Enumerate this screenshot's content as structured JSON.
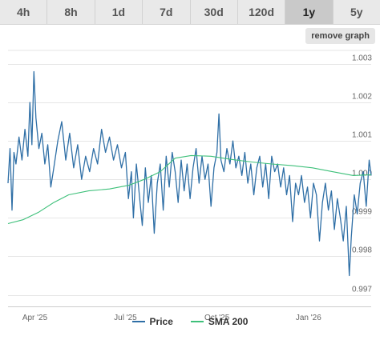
{
  "tabs": [
    {
      "label": "4h",
      "active": false
    },
    {
      "label": "8h",
      "active": false
    },
    {
      "label": "1d",
      "active": false
    },
    {
      "label": "7d",
      "active": false
    },
    {
      "label": "30d",
      "active": false
    },
    {
      "label": "120d",
      "active": false
    },
    {
      "label": "1y",
      "active": true
    },
    {
      "label": "5y",
      "active": false
    }
  ],
  "remove_graph_label": "remove graph",
  "colors": {
    "price": "#2f6fa6",
    "sma": "#3ec07a",
    "grid": "#e6e6e6",
    "axis_text": "#666666"
  },
  "chart_data": {
    "type": "line",
    "x_start": "2025-03-05",
    "x_end": "2026-03-05",
    "ylim": [
      0.9967,
      1.00335
    ],
    "yticks": [
      {
        "label": "0.997",
        "value": 0.997
      },
      {
        "label": "0.998",
        "value": 0.998
      },
      {
        "label": "0.999",
        "value": 0.999
      },
      {
        "label": "1.000",
        "value": 1.0
      },
      {
        "label": "1.001",
        "value": 1.001
      },
      {
        "label": "1.002",
        "value": 1.002
      },
      {
        "label": "1.003",
        "value": 1.003
      }
    ],
    "xticks": [
      {
        "label": "Apr '25",
        "date": "2025-04-01"
      },
      {
        "label": "Jul '25",
        "date": "2025-07-01"
      },
      {
        "label": "Oct '25",
        "date": "2025-10-01"
      },
      {
        "label": "Jan '26",
        "date": "2026-01-01"
      }
    ],
    "grid": true,
    "legend": "bottom",
    "series": [
      {
        "name": "Price",
        "points": [
          [
            "2025-03-05",
            0.9999
          ],
          [
            "2025-03-07",
            1.0008
          ],
          [
            "2025-03-09",
            0.9992
          ],
          [
            "2025-03-11",
            1.0007
          ],
          [
            "2025-03-13",
            1.0004
          ],
          [
            "2025-03-16",
            1.0011
          ],
          [
            "2025-03-19",
            1.0005
          ],
          [
            "2025-03-22",
            1.0013
          ],
          [
            "2025-03-25",
            1.0006
          ],
          [
            "2025-03-27",
            1.002
          ],
          [
            "2025-03-29",
            1.0009
          ],
          [
            "2025-03-31",
            1.0028
          ],
          [
            "2025-04-02",
            1.0016
          ],
          [
            "2025-04-05",
            1.0008
          ],
          [
            "2025-04-08",
            1.0012
          ],
          [
            "2025-04-11",
            1.0004
          ],
          [
            "2025-04-14",
            1.0009
          ],
          [
            "2025-04-17",
            0.9998
          ],
          [
            "2025-04-20",
            1.0003
          ],
          [
            "2025-04-24",
            1.001
          ],
          [
            "2025-04-28",
            1.0015
          ],
          [
            "2025-05-02",
            1.0005
          ],
          [
            "2025-05-06",
            1.0012
          ],
          [
            "2025-05-10",
            1.0003
          ],
          [
            "2025-05-14",
            1.0009
          ],
          [
            "2025-05-18",
            1.0
          ],
          [
            "2025-05-22",
            1.0006
          ],
          [
            "2025-05-26",
            1.0002
          ],
          [
            "2025-05-30",
            1.0008
          ],
          [
            "2025-06-03",
            1.0004
          ],
          [
            "2025-06-07",
            1.0013
          ],
          [
            "2025-06-11",
            1.0007
          ],
          [
            "2025-06-15",
            1.0011
          ],
          [
            "2025-06-19",
            1.0005
          ],
          [
            "2025-06-23",
            1.0009
          ],
          [
            "2025-06-27",
            1.0003
          ],
          [
            "2025-07-01",
            1.0007
          ],
          [
            "2025-07-04",
            0.9995
          ],
          [
            "2025-07-07",
            1.0002
          ],
          [
            "2025-07-09",
            0.999
          ],
          [
            "2025-07-12",
            1.0004
          ],
          [
            "2025-07-15",
            0.9996
          ],
          [
            "2025-07-18",
            0.9988
          ],
          [
            "2025-07-21",
            1.0003
          ],
          [
            "2025-07-24",
            0.9994
          ],
          [
            "2025-07-27",
            1.0001
          ],
          [
            "2025-07-30",
            0.9986
          ],
          [
            "2025-08-02",
            0.9999
          ],
          [
            "2025-08-05",
            1.0004
          ],
          [
            "2025-08-08",
            0.9992
          ],
          [
            "2025-08-11",
            1.0006
          ],
          [
            "2025-08-14",
            0.9998
          ],
          [
            "2025-08-17",
            1.0007
          ],
          [
            "2025-08-20",
            1.0002
          ],
          [
            "2025-08-23",
            0.9994
          ],
          [
            "2025-08-26",
            1.0005
          ],
          [
            "2025-08-29",
            0.9997
          ],
          [
            "2025-09-01",
            1.0004
          ],
          [
            "2025-09-04",
            0.9995
          ],
          [
            "2025-09-07",
            1.0003
          ],
          [
            "2025-09-10",
            1.0008
          ],
          [
            "2025-09-13",
            0.9999
          ],
          [
            "2025-09-16",
            1.0006
          ],
          [
            "2025-09-19",
            1.0
          ],
          [
            "2025-09-22",
            1.0004
          ],
          [
            "2025-09-25",
            0.9993
          ],
          [
            "2025-09-28",
            1.0003
          ],
          [
            "2025-10-01",
            1.0007
          ],
          [
            "2025-10-03",
            1.0017
          ],
          [
            "2025-10-05",
            1.0005
          ],
          [
            "2025-10-08",
            1.0002
          ],
          [
            "2025-10-11",
            1.0008
          ],
          [
            "2025-10-14",
            1.0004
          ],
          [
            "2025-10-17",
            1.001
          ],
          [
            "2025-10-20",
            1.0003
          ],
          [
            "2025-10-23",
            1.0006
          ],
          [
            "2025-10-26",
            1.0001
          ],
          [
            "2025-10-29",
            1.0007
          ],
          [
            "2025-11-01",
            0.9999
          ],
          [
            "2025-11-04",
            1.0004
          ],
          [
            "2025-11-07",
            0.9996
          ],
          [
            "2025-11-10",
            1.0003
          ],
          [
            "2025-11-13",
            1.0006
          ],
          [
            "2025-11-16",
            0.9998
          ],
          [
            "2025-11-19",
            1.0004
          ],
          [
            "2025-11-22",
            0.9995
          ],
          [
            "2025-11-25",
            1.0006
          ],
          [
            "2025-11-28",
            1.0002
          ],
          [
            "2025-12-01",
            1.0004
          ],
          [
            "2025-12-04",
            0.9998
          ],
          [
            "2025-12-07",
            1.0003
          ],
          [
            "2025-12-10",
            0.9996
          ],
          [
            "2025-12-13",
            1.0001
          ],
          [
            "2025-12-16",
            0.9989
          ],
          [
            "2025-12-19",
            0.9999
          ],
          [
            "2025-12-22",
            0.9996
          ],
          [
            "2025-12-25",
            1.0001
          ],
          [
            "2025-12-28",
            0.9994
          ],
          [
            "2025-12-31",
            0.9998
          ],
          [
            "2026-01-03",
            0.999
          ],
          [
            "2026-01-06",
            0.9999
          ],
          [
            "2026-01-09",
            0.9996
          ],
          [
            "2026-01-12",
            0.9984
          ],
          [
            "2026-01-15",
            0.9994
          ],
          [
            "2026-01-18",
            0.9999
          ],
          [
            "2026-01-21",
            0.9992
          ],
          [
            "2026-01-24",
            0.9997
          ],
          [
            "2026-01-27",
            0.9987
          ],
          [
            "2026-01-30",
            0.9995
          ],
          [
            "2026-02-02",
            0.999
          ],
          [
            "2026-02-05",
            0.9984
          ],
          [
            "2026-02-08",
            0.9993
          ],
          [
            "2026-02-11",
            0.9975
          ],
          [
            "2026-02-13",
            0.9985
          ],
          [
            "2026-02-16",
            0.9996
          ],
          [
            "2026-02-19",
            0.9991
          ],
          [
            "2026-02-22",
            0.9999
          ],
          [
            "2026-02-25",
            1.0002
          ],
          [
            "2026-02-28",
            0.9993
          ],
          [
            "2026-03-03",
            1.0005
          ],
          [
            "2026-03-05",
            1.0001
          ]
        ]
      },
      {
        "name": "SMA 200",
        "points": [
          [
            "2025-03-05",
            0.99885
          ],
          [
            "2025-03-20",
            0.99895
          ],
          [
            "2025-04-05",
            0.99915
          ],
          [
            "2025-04-20",
            0.9994
          ],
          [
            "2025-05-05",
            0.9996
          ],
          [
            "2025-05-25",
            0.9997
          ],
          [
            "2025-06-15",
            0.99975
          ],
          [
            "2025-07-05",
            0.99985
          ],
          [
            "2025-07-20",
            1.0
          ],
          [
            "2025-08-05",
            1.0002
          ],
          [
            "2025-08-20",
            1.00055
          ],
          [
            "2025-09-05",
            1.00062
          ],
          [
            "2025-09-25",
            1.0006
          ],
          [
            "2025-10-15",
            1.00052
          ],
          [
            "2025-11-05",
            1.00045
          ],
          [
            "2025-11-25",
            1.0004
          ],
          [
            "2025-12-15",
            1.00036
          ],
          [
            "2026-01-05",
            1.0003
          ],
          [
            "2026-01-25",
            1.0002
          ],
          [
            "2026-02-15",
            1.0001
          ],
          [
            "2026-03-05",
            1.00012
          ]
        ]
      }
    ]
  }
}
